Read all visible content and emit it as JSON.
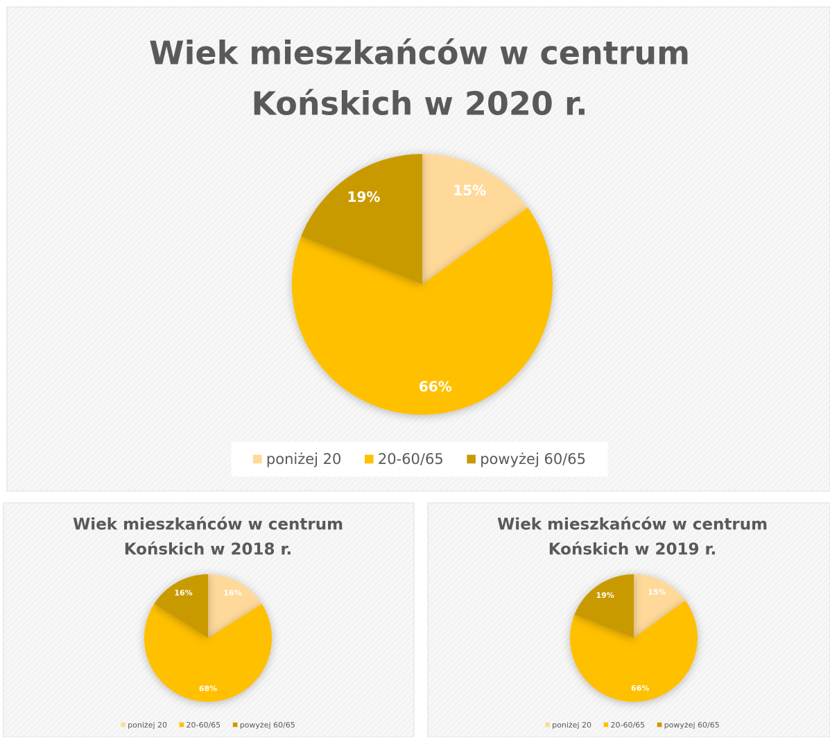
{
  "chart_data": [
    {
      "type": "pie",
      "title": [
        "Wiek mieszkańców w centrum",
        "Końskich w 2020 r."
      ],
      "categories": [
        "poniżej 20",
        "20-60/65",
        "powyżej 60/65"
      ],
      "values": [
        15,
        66,
        19
      ],
      "value_labels": [
        "15%",
        "66%",
        "19%"
      ],
      "colors": [
        "#ffd999",
        "#ffc000",
        "#c99a00"
      ]
    },
    {
      "type": "pie",
      "title": [
        "Wiek mieszkańców w centrum",
        "Końskich w 2018 r."
      ],
      "categories": [
        "poniżej 20",
        "20-60/65",
        "powyżej 60/65"
      ],
      "values": [
        16,
        68,
        16
      ],
      "value_labels": [
        "16%",
        "68%",
        "16%"
      ],
      "colors": [
        "#ffd999",
        "#ffc000",
        "#c99a00"
      ]
    },
    {
      "type": "pie",
      "title": [
        "Wiek mieszkańców w centrum",
        "Końskich w 2019 r."
      ],
      "categories": [
        "poniżej 20",
        "20-60/65",
        "powyżej 60/65"
      ],
      "values": [
        15,
        66,
        19
      ],
      "value_labels": [
        "15%",
        "66%",
        "19%"
      ],
      "colors": [
        "#ffd999",
        "#ffc000",
        "#c99a00"
      ]
    }
  ]
}
